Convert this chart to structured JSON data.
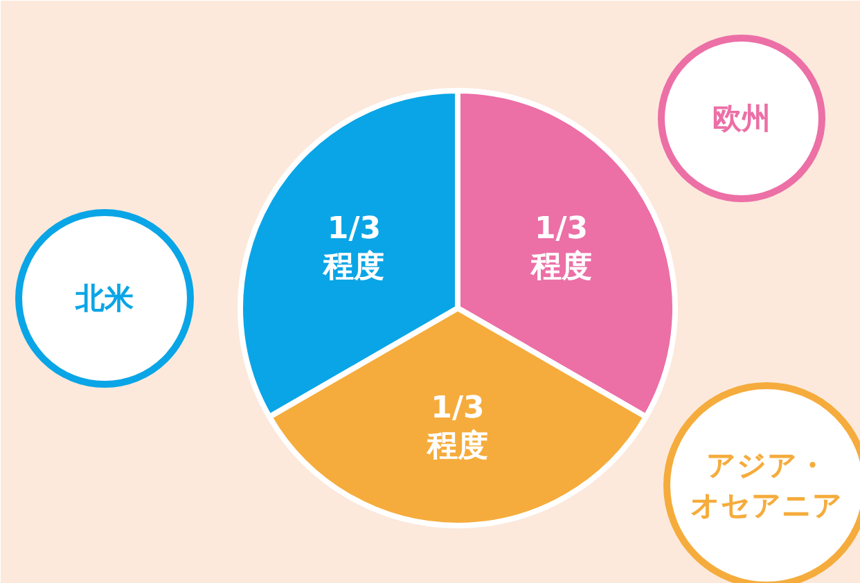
{
  "chart_data": {
    "type": "pie",
    "categories": [
      "欧州",
      "アジア・オセアニア",
      "北米"
    ],
    "values": [
      33.33,
      33.34,
      33.33
    ],
    "colors": [
      "#ec6fa6",
      "#f5ac3c",
      "#0aa5e6"
    ],
    "value_labels": [
      "1/3\n程度",
      "1/3\n程度",
      "1/3\n程度"
    ]
  }
}
